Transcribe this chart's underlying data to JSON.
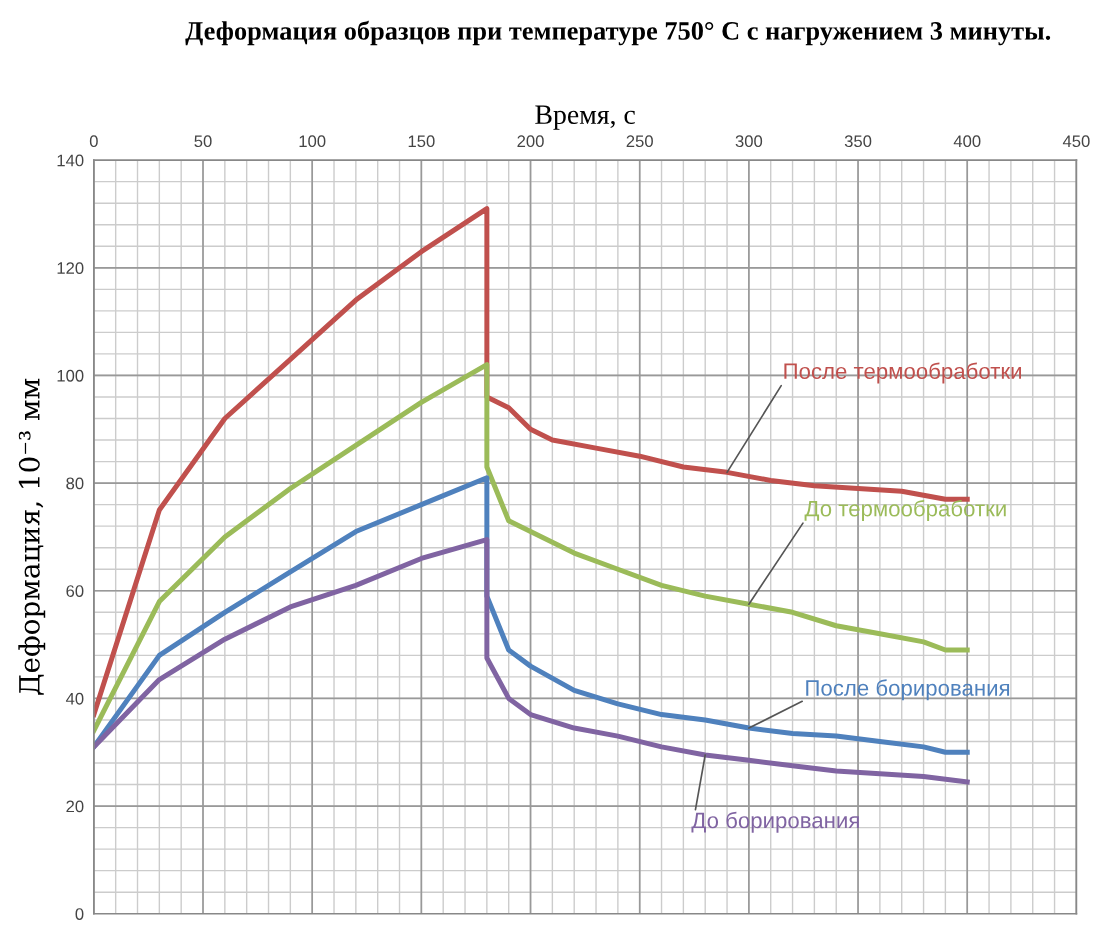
{
  "chart_data": {
    "type": "line",
    "title": "Деформация образцов при температуре 750° С с нагружением 3 минуты.",
    "xlabel": "Время, с",
    "ylabel": "Деформация, 10⁻³ мм",
    "xlim": [
      0,
      450
    ],
    "xticks": [
      0,
      50,
      100,
      150,
      200,
      250,
      300,
      350,
      400,
      450
    ],
    "ylim": [
      0,
      140
    ],
    "yticks": [
      0,
      20,
      40,
      60,
      80,
      100,
      120,
      140
    ],
    "grid": true,
    "marker": "none",
    "line_style": "solid",
    "series": [
      {
        "name": "После термообработки",
        "color": "#c0504d",
        "x": [
          0,
          30,
          60,
          90,
          120,
          150,
          180,
          180,
          190,
          200,
          210,
          230,
          250,
          270,
          290,
          310,
          330,
          350,
          370,
          390,
          400
        ],
        "values": [
          37,
          75,
          92,
          103,
          114,
          123,
          131,
          96,
          94,
          90,
          88,
          86.5,
          85,
          83,
          82,
          80.5,
          79.5,
          79,
          78.5,
          77,
          77
        ]
      },
      {
        "name": "До термообработки",
        "color": "#9bbb59",
        "x": [
          0,
          30,
          60,
          90,
          120,
          150,
          180,
          180,
          190,
          200,
          220,
          240,
          260,
          280,
          300,
          320,
          340,
          360,
          380,
          390,
          400
        ],
        "values": [
          34,
          58,
          70,
          79,
          87,
          95,
          102,
          83,
          73,
          71,
          67,
          64,
          61,
          59,
          57.5,
          56,
          53.5,
          52,
          50.5,
          49,
          49
        ]
      },
      {
        "name": "После борирования",
        "color": "#4f81bd",
        "x": [
          0,
          30,
          60,
          90,
          120,
          150,
          180,
          180,
          190,
          200,
          220,
          240,
          260,
          280,
          300,
          320,
          340,
          360,
          380,
          390,
          400
        ],
        "values": [
          31,
          48,
          56,
          63.5,
          71,
          76,
          81,
          59,
          49,
          46,
          41.5,
          39,
          37,
          36,
          34.5,
          33.5,
          33,
          32,
          31,
          30,
          30
        ]
      },
      {
        "name": "До борирования",
        "color": "#8064a2",
        "x": [
          0,
          30,
          60,
          90,
          120,
          150,
          180,
          180,
          190,
          200,
          220,
          240,
          260,
          280,
          300,
          320,
          340,
          360,
          380,
          400
        ],
        "values": [
          31,
          43.5,
          51,
          57,
          61,
          66,
          69.5,
          47.5,
          40,
          37,
          34.5,
          33,
          31,
          29.5,
          28.5,
          27.5,
          26.5,
          26,
          25.5,
          24.5
        ]
      }
    ]
  }
}
